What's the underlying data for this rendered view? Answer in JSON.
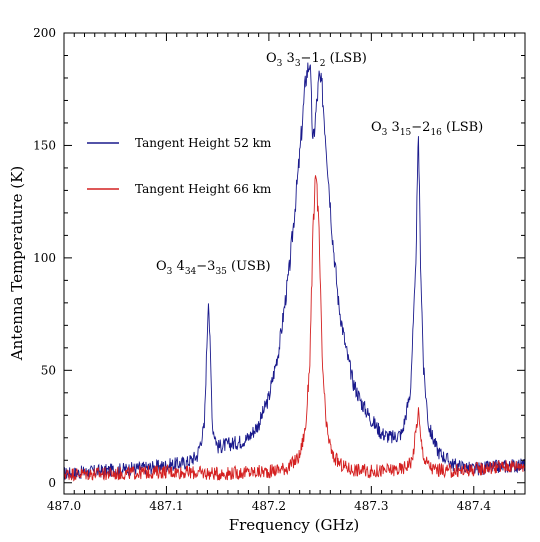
{
  "chart_data": {
    "type": "line",
    "xlabel": "Frequency (GHz)",
    "ylabel": "Antenna Temperature (K)",
    "xlim": [
      487.0,
      487.45
    ],
    "ylim": [
      -5,
      200
    ],
    "x_ticks": [
      487.0,
      487.1,
      487.2,
      487.3,
      487.4
    ],
    "x_tick_labels": [
      "487.0",
      "487.1",
      "487.2",
      "487.3",
      "487.4"
    ],
    "y_ticks": [
      0,
      50,
      100,
      150,
      200
    ],
    "y_tick_labels": [
      "0",
      "50",
      "100",
      "150",
      "200"
    ],
    "grid": false,
    "legend_position": "upper-left",
    "series": [
      {
        "name": "Tangent Height 52 km",
        "color": "#1a1a8c",
        "x": [
          487.0,
          487.03,
          487.06,
          487.09,
          487.12,
          487.13,
          487.137,
          487.141,
          487.145,
          487.15,
          487.16,
          487.17,
          487.18,
          487.19,
          487.2,
          487.21,
          487.22,
          487.23,
          487.236,
          487.24,
          487.243,
          487.246,
          487.249,
          487.252,
          487.256,
          487.262,
          487.268,
          487.275,
          487.282,
          487.29,
          487.3,
          487.31,
          487.32,
          487.33,
          487.338,
          487.343,
          487.346,
          487.348,
          487.351,
          487.356,
          487.365,
          487.38,
          487.4,
          487.42,
          487.45
        ],
        "y": [
          4,
          5,
          6,
          7,
          9,
          12,
          25,
          84,
          25,
          16,
          17,
          18,
          20,
          26,
          38,
          60,
          95,
          145,
          180,
          188,
          150,
          165,
          180,
          175,
          150,
          110,
          80,
          60,
          45,
          36,
          28,
          22,
          20,
          22,
          40,
          90,
          155,
          100,
          50,
          25,
          14,
          8,
          6,
          7,
          8
        ]
      },
      {
        "name": "Tangent Height 66 km",
        "color": "#d42020",
        "x": [
          487.0,
          487.05,
          487.1,
          487.15,
          487.2,
          487.22,
          487.23,
          487.236,
          487.24,
          487.243,
          487.246,
          487.249,
          487.252,
          487.256,
          487.262,
          487.27,
          487.28,
          487.3,
          487.33,
          487.34,
          487.346,
          487.348,
          487.352,
          487.36,
          487.38,
          487.4,
          487.42,
          487.45
        ],
        "y": [
          4,
          4,
          5,
          4,
          5,
          7,
          12,
          25,
          55,
          110,
          140,
          110,
          55,
          25,
          12,
          8,
          6,
          5,
          6,
          10,
          32,
          20,
          10,
          6,
          5,
          6,
          7,
          8
        ]
      }
    ],
    "annotations": [
      {
        "text": "O",
        "sub1": "3",
        "mid": " 3",
        "sub2": "3",
        "rest": "−1",
        "sub3": "2",
        "tail": " (LSB)"
      },
      {
        "text": "O",
        "sub1": "3",
        "mid": " 3",
        "sub2": "15",
        "rest": "−2",
        "sub3": "16",
        "tail": " (LSB)"
      },
      {
        "text": "O",
        "sub1": "3",
        "mid": " 4",
        "sub2": "34",
        "rest": "−3",
        "sub3": "35",
        "tail": " (USB)"
      }
    ]
  }
}
